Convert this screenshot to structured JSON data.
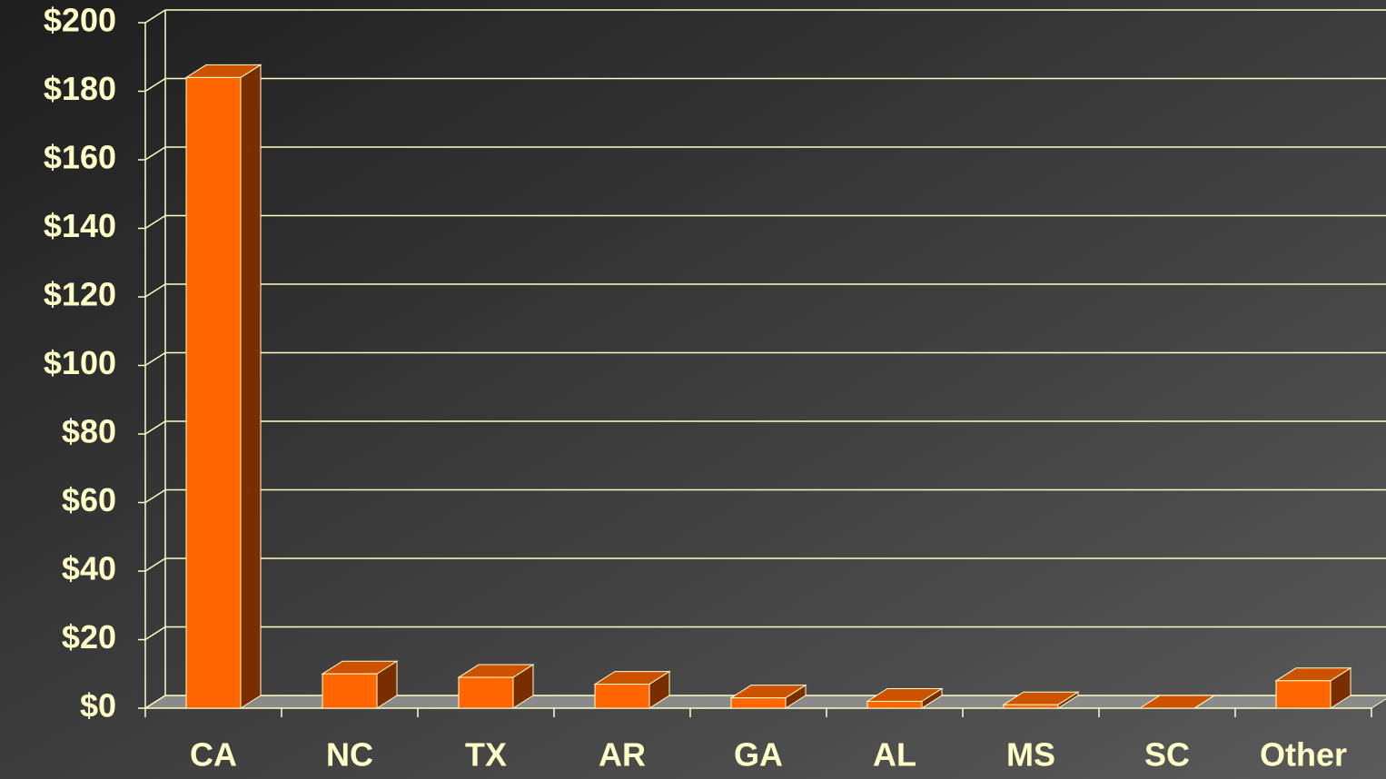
{
  "chart_data": {
    "type": "bar",
    "categories": [
      "CA",
      "NC",
      "TX",
      "AR",
      "GA",
      "AL",
      "MS",
      "SC",
      "Other"
    ],
    "values": [
      184,
      10,
      9,
      7,
      3,
      2,
      1,
      0,
      8
    ],
    "color": "#ff6600",
    "ylim": [
      0,
      200
    ],
    "yticks": [
      {
        "value": 0,
        "label": "$0"
      },
      {
        "value": 20,
        "label": "$20"
      },
      {
        "value": 40,
        "label": "$40"
      },
      {
        "value": 60,
        "label": "$60"
      },
      {
        "value": 80,
        "label": "$80"
      },
      {
        "value": 100,
        "label": "$100"
      },
      {
        "value": 120,
        "label": "$120"
      },
      {
        "value": 140,
        "label": "$140"
      },
      {
        "value": 160,
        "label": "$160"
      },
      {
        "value": 180,
        "label": "$180"
      },
      {
        "value": 200,
        "label": "$200"
      }
    ],
    "grid": true
  }
}
